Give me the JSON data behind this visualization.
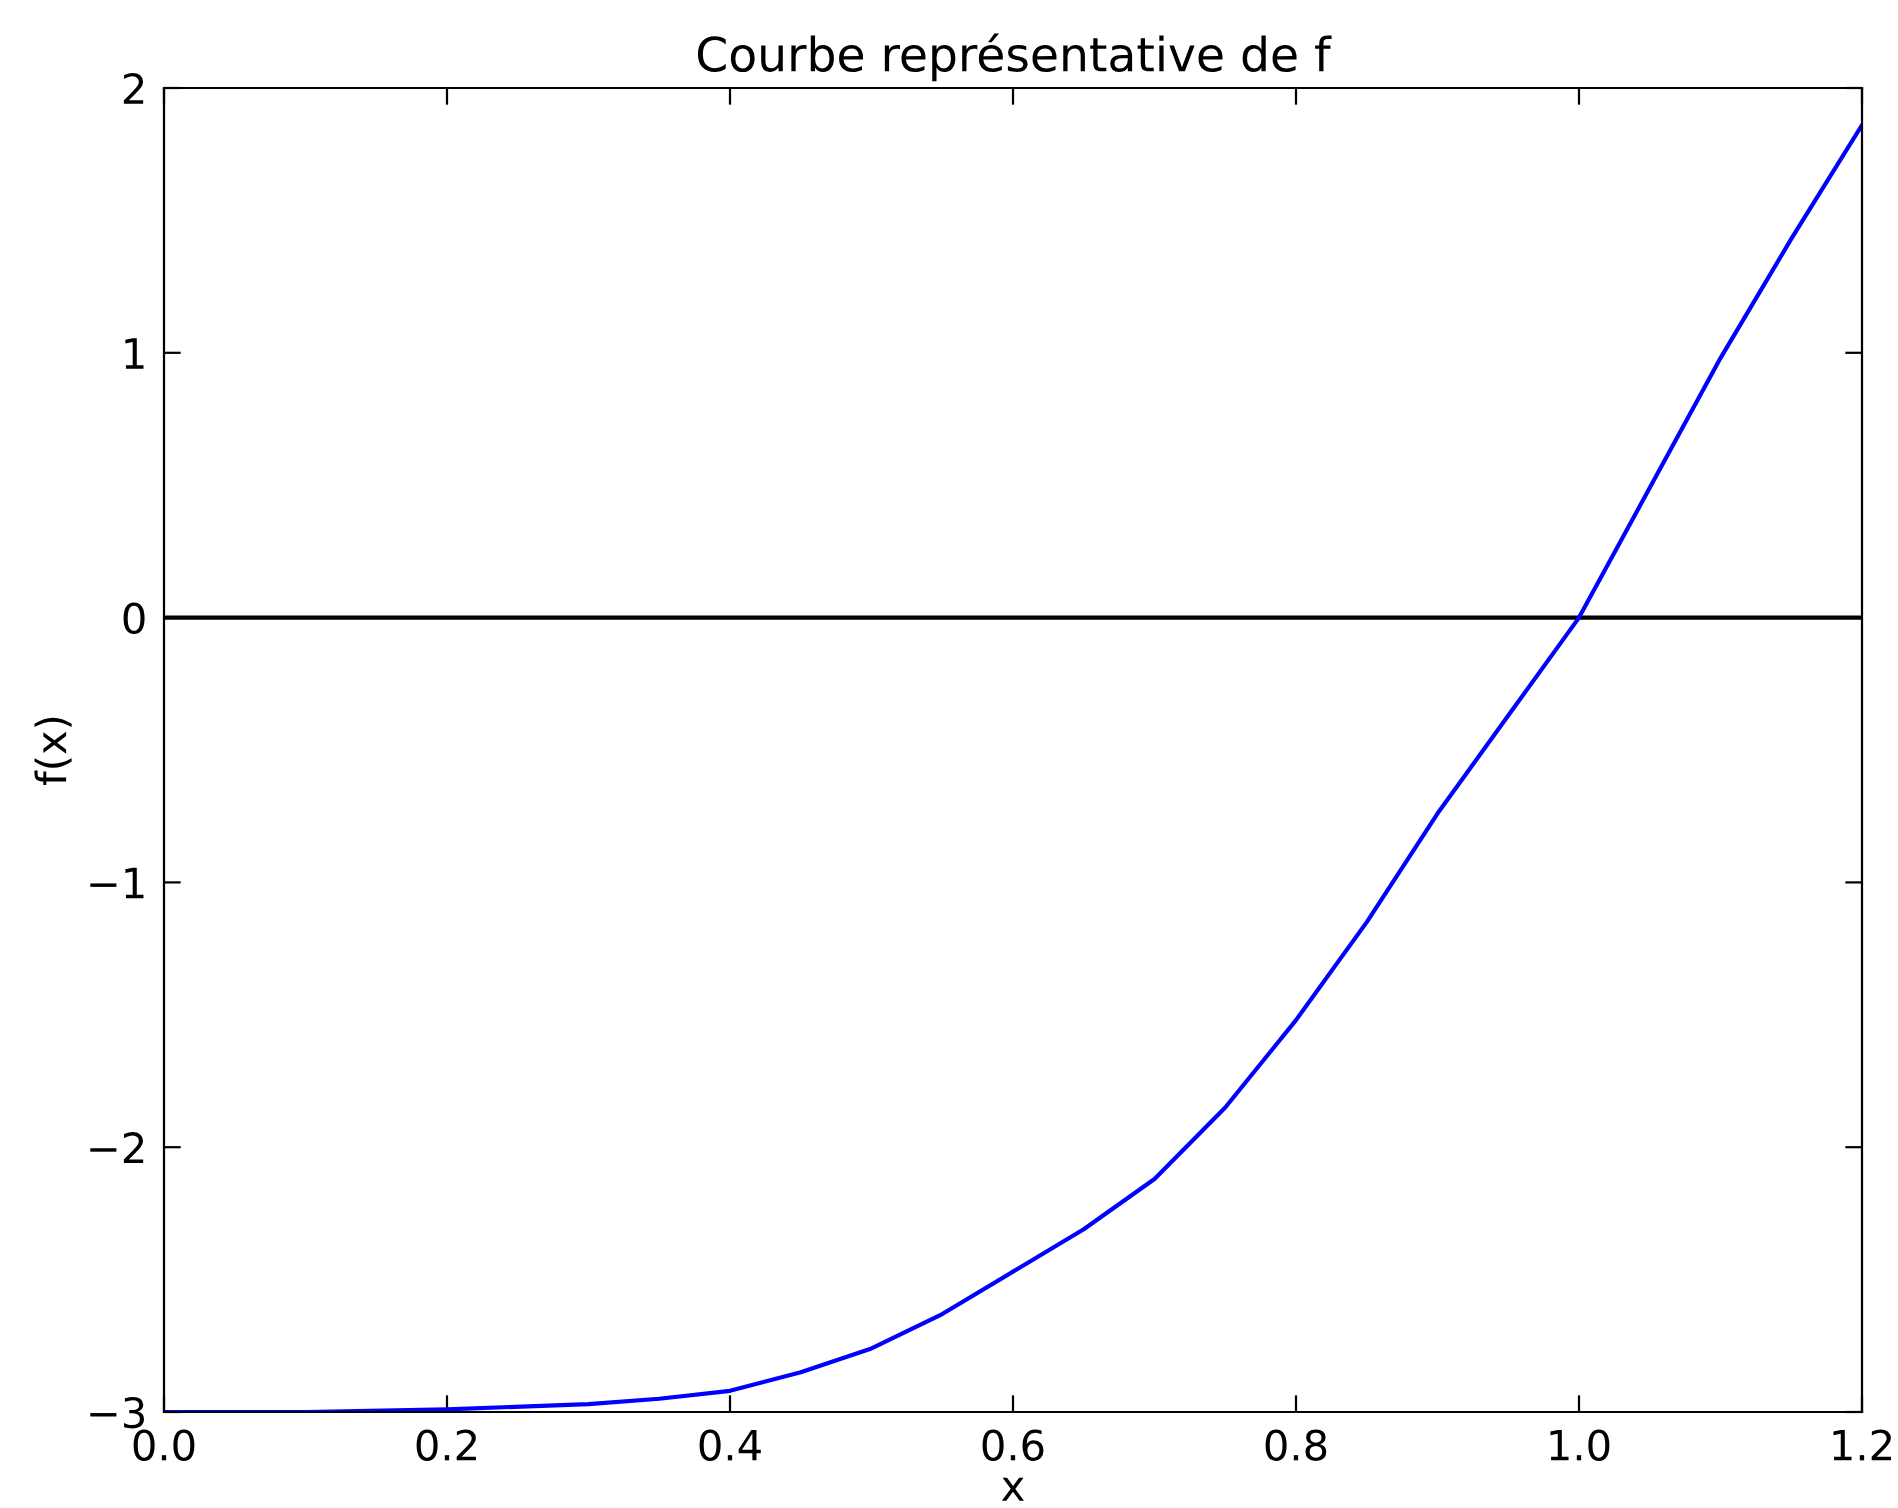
{
  "chart_data": {
    "type": "line",
    "title": "Courbe représentative de f",
    "xlabel": "x",
    "ylabel": "f(x)",
    "x": [
      0,
      0.1,
      0.2,
      0.3,
      0.35,
      0.4,
      0.45,
      0.5,
      0.55,
      0.6,
      0.65,
      0.7,
      0.75,
      0.8,
      0.85,
      0.9,
      0.95,
      1.0,
      1.05,
      1.1,
      1.15,
      1.2
    ],
    "series": [
      {
        "color": "#0000ff",
        "values": [
          -3,
          -3,
          -2.99,
          -2.97,
          -2.95,
          -2.92,
          -2.85,
          -2.76,
          -2.63,
          -2.47,
          -2.31,
          -2.12,
          -1.85,
          -1.52,
          -1.15,
          -0.74,
          -0.37,
          0,
          0.49,
          0.98,
          1.43,
          1.86
        ]
      }
    ],
    "xlim": [
      0,
      1.2
    ],
    "ylim": [
      -3,
      2
    ],
    "xticks": [
      {
        "value": 0,
        "label": "0.0"
      },
      0.2,
      0.4,
      0.6,
      0.8,
      {
        "value": 1,
        "label": "1.0"
      },
      1.2
    ],
    "yticks": [
      {
        "value": -3,
        "label": "−3"
      },
      {
        "value": -2,
        "label": "−2"
      },
      {
        "value": -1,
        "label": "−1"
      },
      0,
      1,
      2
    ],
    "ref_lines": [
      {
        "axis": "y",
        "value": 0,
        "color": "#000000"
      }
    ],
    "grid": false,
    "legend": false,
    "marker": "none",
    "line_style": "solid"
  }
}
